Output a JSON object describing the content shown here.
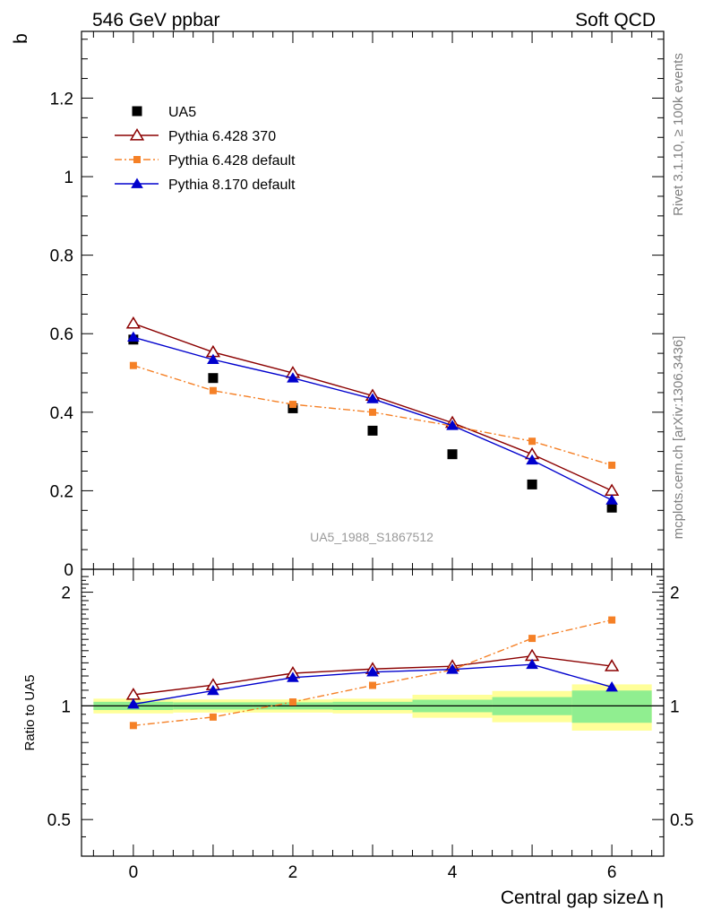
{
  "header": {
    "left_title": "546 GeV ppbar",
    "right_title": "Soft QCD"
  },
  "side_labels": {
    "rivet": "Rivet 3.1.10, ≥ 100k events",
    "source": "mcplots.cern.ch [arXiv:1306.3436]"
  },
  "chart_data": [
    {
      "type": "scatter",
      "panel": "main",
      "title": "",
      "watermark": "UA5_1988_S1867512",
      "ylabel": "b",
      "xlabel": "",
      "xlim": [
        -0.65,
        6.65
      ],
      "ylim": [
        0,
        1.37
      ],
      "y_ticks": [
        0,
        0.2,
        0.4,
        0.6,
        0.8,
        1,
        1.2
      ],
      "y_tick_labels": [
        "0",
        "0.2",
        "0.4",
        "0.6",
        "0.8",
        "1",
        "1.2"
      ],
      "legend_position": "top-left",
      "x": [
        0,
        1,
        2,
        3,
        4,
        5,
        6
      ],
      "series": [
        {
          "name": "UA5",
          "style": "data",
          "marker": "square",
          "color": "#000000",
          "values": [
            0.585,
            0.487,
            0.41,
            0.353,
            0.293,
            0.216,
            0.157
          ]
        },
        {
          "name": "Pythia 6.428 370",
          "style": "solid",
          "marker": "open-triangle",
          "color": "#8b0000",
          "values": [
            0.626,
            0.553,
            0.5,
            0.442,
            0.373,
            0.293,
            0.2
          ]
        },
        {
          "name": "Pythia 6.428 default",
          "style": "dashdot",
          "marker": "small-square",
          "color": "#f58026",
          "values": [
            0.519,
            0.455,
            0.42,
            0.4,
            0.365,
            0.326,
            0.265
          ]
        },
        {
          "name": "Pythia 8.170 default",
          "style": "solid",
          "marker": "filled-triangle",
          "color": "#0000cd",
          "values": [
            0.591,
            0.534,
            0.487,
            0.434,
            0.366,
            0.278,
            0.176
          ]
        }
      ]
    },
    {
      "type": "line",
      "panel": "ratio",
      "ylabel": "Ratio to UA5",
      "xlabel": "Central gap sizeΔ η",
      "xlim": [
        -0.65,
        6.65
      ],
      "ylim": [
        0.4,
        2.3
      ],
      "scale": "log",
      "y_ticks": [
        0.5,
        1,
        2
      ],
      "y_tick_labels": [
        "0.5",
        "1",
        "2"
      ],
      "x_ticks": [
        0,
        2,
        4,
        6
      ],
      "x_tick_labels": [
        "0",
        "2",
        "4",
        "6"
      ],
      "x": [
        0,
        1,
        2,
        3,
        4,
        5,
        6
      ],
      "uncertainty_bands": {
        "stat_color": "#90ee90",
        "total_color": "#ffff99",
        "stat_half_width": [
          0.025,
          0.022,
          0.022,
          0.025,
          0.038,
          0.055,
          0.098
        ],
        "total_half_width": [
          0.045,
          0.04,
          0.04,
          0.045,
          0.07,
          0.095,
          0.14
        ]
      },
      "series": [
        {
          "name": "Pythia 6.428 370",
          "style": "solid",
          "marker": "open-triangle",
          "color": "#8b0000",
          "values": [
            1.07,
            1.135,
            1.22,
            1.252,
            1.273,
            1.356,
            1.274
          ]
        },
        {
          "name": "Pythia 6.428 default",
          "style": "dashdot",
          "marker": "small-square",
          "color": "#f58026",
          "values": [
            0.887,
            0.934,
            1.024,
            1.133,
            1.246,
            1.509,
            1.688
          ]
        },
        {
          "name": "Pythia 8.170 default",
          "style": "solid",
          "marker": "filled-triangle",
          "color": "#0000cd",
          "values": [
            1.01,
            1.097,
            1.188,
            1.229,
            1.249,
            1.287,
            1.121
          ]
        }
      ]
    }
  ]
}
